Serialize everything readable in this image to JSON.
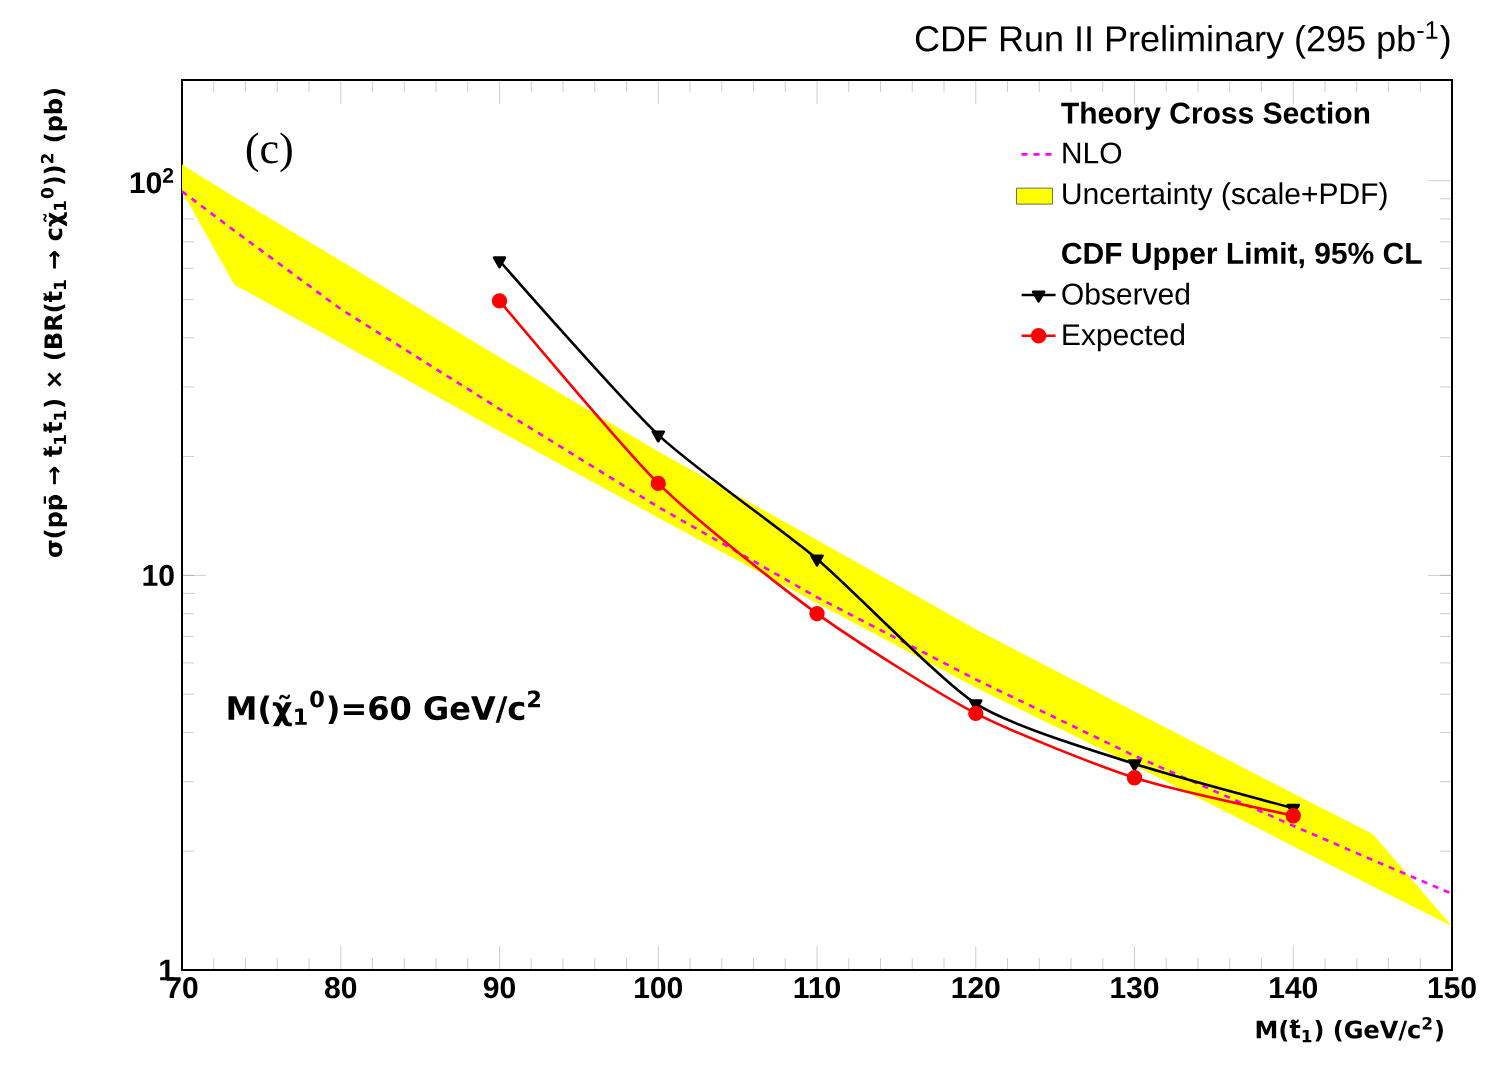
{
  "chart_data": {
    "type": "line",
    "title": "CDF Run II Preliminary (295 pb$^{-1}$)",
    "xlabel": "M(t̃$_{1}$) (GeV/c$^{2}$)",
    "ylabel": "σ(pp̄ → t̃$_{1}$t̃̄$_{1}$) × (BR(t̃$_{1}$ → cχ̃$_{1}$$^{0}$))$^{2}$ (pb)",
    "annotations": [
      "(c)",
      "Theory Cross Section",
      "CDF Upper Limit, 95% CL",
      "M(χ̃$_{1}$$^{0}$)=60 GeV/c$^{2}$",
      "Uncertainty (scale+PDF)"
    ],
    "xlim": [
      70,
      150
    ],
    "xticks": [
      70,
      80,
      90,
      100,
      110,
      120,
      130,
      140,
      150
    ],
    "ylim": [
      1,
      180
    ],
    "yticks": [
      1,
      10,
      {
        "value": 100,
        "label": "10$^{2}$"
      }
    ],
    "log": true,
    "legend": "top right",
    "series": [
      {
        "name": "NLO",
        "color": "#ff00ff",
        "line_style": "dashed",
        "marker": "none",
        "x": [
          70,
          73.3,
          80,
          90,
          100,
          110,
          120,
          130,
          140,
          145,
          150
        ],
        "values": [
          94,
          74.7,
          47.3,
          26.4,
          14.9,
          8.8,
          5.45,
          3.49,
          2.32,
          1.9,
          1.56
        ],
        "lower": [
          94,
          54.5,
          38.8,
          23.2,
          14.0,
          8.5,
          5.2,
          3.3,
          2.06,
          1.63,
          1.29
        ],
        "upper": [
          110,
          91,
          62.7,
          35.7,
          20.6,
          12.3,
          7.3,
          4.52,
          2.8,
          2.21,
          1.29
        ]
      },
      {
        "name": "Observed",
        "color": "#000000",
        "line_style": "solid",
        "marker": "triangle",
        "x": [
          90,
          100,
          110,
          120,
          130,
          140
        ],
        "values": [
          62.7,
          22.7,
          11.0,
          4.73,
          3.33,
          2.57
        ]
      },
      {
        "name": "Expected",
        "color": "#ff0000",
        "line_style": "solid",
        "marker": "circle",
        "x": [
          90,
          100,
          110,
          120,
          130,
          140
        ],
        "values": [
          49.6,
          17.1,
          8.0,
          4.47,
          3.07,
          2.46
        ]
      }
    ]
  }
}
